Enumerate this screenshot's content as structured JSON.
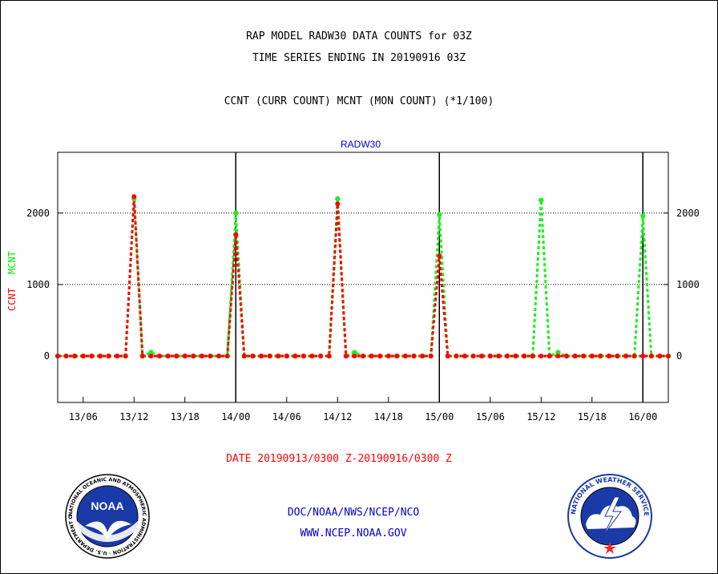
{
  "header": {
    "title": "RAP MODEL RADW30 DATA COUNTS for 03Z",
    "subtitle": "TIME SERIES ENDING IN 20190916 03Z",
    "legend_text": "CCNT (CURR COUNT) MCNT (MON COUNT) (*1/100)"
  },
  "footer": {
    "date_range": "DATE 20190913/0300 Z-20190916/0300 Z",
    "org": "DOC/NOAA/NWS/NCEP/NCO",
    "url": "WWW.NCEP.NOAA.GOV"
  },
  "logos": {
    "noaa": {
      "ring_text": "NATIONAL OCEANIC AND ATMOSPHERIC ADMINISTRATION · U.S. DEPARTMENT OF COMMERCE",
      "center_text": "NOAA"
    },
    "nws": {
      "ring_text": "NATIONAL WEATHER SERVICE"
    }
  },
  "colors": {
    "ccnt": "#ff0000",
    "mcnt": "#00ff00",
    "plot_title": "#0000cc",
    "footer": "#0000cc"
  },
  "chart_data": {
    "type": "line",
    "title": "RADW30",
    "ylabel_left": "CCNT",
    "ylabel_right": "MCNT",
    "ylim": [
      -650,
      2850
    ],
    "yticks": [
      0,
      1000,
      2000
    ],
    "x_time_range": [
      "2019-09-13T03:00Z",
      "2019-09-16T03:00Z"
    ],
    "x_ticks": [
      "13/06",
      "13/12",
      "13/18",
      "14/00",
      "14/06",
      "14/12",
      "14/18",
      "15/00",
      "15/06",
      "15/12",
      "15/18",
      "16/00"
    ],
    "day_boundaries": [
      "14/00",
      "15/00",
      "16/00"
    ],
    "grid_y": [
      1000,
      2000
    ],
    "legend": "left axis label",
    "series": [
      {
        "name": "CCNT",
        "color": "#ff0000",
        "x": [
          "2019-09-13T03:00Z",
          "2019-09-13T04:00Z",
          "2019-09-13T05:00Z",
          "2019-09-13T06:00Z",
          "2019-09-13T07:00Z",
          "2019-09-13T08:00Z",
          "2019-09-13T09:00Z",
          "2019-09-13T10:00Z",
          "2019-09-13T11:00Z",
          "2019-09-13T12:00Z",
          "2019-09-13T13:00Z",
          "2019-09-13T14:00Z",
          "2019-09-13T15:00Z",
          "2019-09-13T16:00Z",
          "2019-09-13T17:00Z",
          "2019-09-13T18:00Z",
          "2019-09-13T19:00Z",
          "2019-09-13T20:00Z",
          "2019-09-13T21:00Z",
          "2019-09-13T22:00Z",
          "2019-09-13T23:00Z",
          "2019-09-14T00:00Z",
          "2019-09-14T01:00Z",
          "2019-09-14T02:00Z",
          "2019-09-14T03:00Z",
          "2019-09-14T04:00Z",
          "2019-09-14T05:00Z",
          "2019-09-14T06:00Z",
          "2019-09-14T07:00Z",
          "2019-09-14T08:00Z",
          "2019-09-14T09:00Z",
          "2019-09-14T10:00Z",
          "2019-09-14T11:00Z",
          "2019-09-14T12:00Z",
          "2019-09-14T13:00Z",
          "2019-09-14T14:00Z",
          "2019-09-14T15:00Z",
          "2019-09-14T16:00Z",
          "2019-09-14T17:00Z",
          "2019-09-14T18:00Z",
          "2019-09-14T19:00Z",
          "2019-09-14T20:00Z",
          "2019-09-14T21:00Z",
          "2019-09-14T22:00Z",
          "2019-09-14T23:00Z",
          "2019-09-15T00:00Z",
          "2019-09-15T01:00Z",
          "2019-09-15T02:00Z",
          "2019-09-15T03:00Z",
          "2019-09-15T04:00Z",
          "2019-09-15T05:00Z",
          "2019-09-15T06:00Z",
          "2019-09-15T07:00Z",
          "2019-09-15T08:00Z",
          "2019-09-15T09:00Z",
          "2019-09-15T10:00Z",
          "2019-09-15T11:00Z",
          "2019-09-15T12:00Z",
          "2019-09-15T13:00Z",
          "2019-09-15T14:00Z",
          "2019-09-15T15:00Z",
          "2019-09-15T16:00Z",
          "2019-09-15T17:00Z",
          "2019-09-15T18:00Z",
          "2019-09-15T19:00Z",
          "2019-09-15T20:00Z",
          "2019-09-15T21:00Z",
          "2019-09-15T22:00Z",
          "2019-09-15T23:00Z",
          "2019-09-16T00:00Z",
          "2019-09-16T01:00Z",
          "2019-09-16T02:00Z",
          "2019-09-16T03:00Z"
        ],
        "values": [
          0,
          0,
          0,
          0,
          0,
          0,
          0,
          0,
          0,
          2230,
          0,
          0,
          0,
          0,
          0,
          0,
          0,
          0,
          0,
          0,
          0,
          1700,
          0,
          0,
          0,
          0,
          0,
          0,
          0,
          0,
          0,
          0,
          0,
          2130,
          0,
          0,
          0,
          0,
          0,
          0,
          0,
          0,
          0,
          0,
          0,
          1400,
          0,
          0,
          0,
          0,
          0,
          0,
          0,
          0,
          0,
          0,
          0,
          0,
          0,
          0,
          0,
          0,
          0,
          0,
          0,
          0,
          0,
          0,
          0,
          0,
          0,
          0,
          0
        ]
      },
      {
        "name": "MCNT",
        "color": "#00ff00",
        "x": [
          "2019-09-13T03:00Z",
          "2019-09-13T04:00Z",
          "2019-09-13T05:00Z",
          "2019-09-13T06:00Z",
          "2019-09-13T07:00Z",
          "2019-09-13T08:00Z",
          "2019-09-13T09:00Z",
          "2019-09-13T10:00Z",
          "2019-09-13T11:00Z",
          "2019-09-13T12:00Z",
          "2019-09-13T13:00Z",
          "2019-09-13T14:00Z",
          "2019-09-13T15:00Z",
          "2019-09-13T16:00Z",
          "2019-09-13T17:00Z",
          "2019-09-13T18:00Z",
          "2019-09-13T19:00Z",
          "2019-09-13T20:00Z",
          "2019-09-13T21:00Z",
          "2019-09-13T22:00Z",
          "2019-09-13T23:00Z",
          "2019-09-14T00:00Z",
          "2019-09-14T01:00Z",
          "2019-09-14T02:00Z",
          "2019-09-14T03:00Z",
          "2019-09-14T04:00Z",
          "2019-09-14T05:00Z",
          "2019-09-14T06:00Z",
          "2019-09-14T07:00Z",
          "2019-09-14T08:00Z",
          "2019-09-14T09:00Z",
          "2019-09-14T10:00Z",
          "2019-09-14T11:00Z",
          "2019-09-14T12:00Z",
          "2019-09-14T13:00Z",
          "2019-09-14T14:00Z",
          "2019-09-14T15:00Z",
          "2019-09-14T16:00Z",
          "2019-09-14T17:00Z",
          "2019-09-14T18:00Z",
          "2019-09-14T19:00Z",
          "2019-09-14T20:00Z",
          "2019-09-14T21:00Z",
          "2019-09-14T22:00Z",
          "2019-09-14T23:00Z",
          "2019-09-15T00:00Z",
          "2019-09-15T01:00Z",
          "2019-09-15T02:00Z",
          "2019-09-15T03:00Z",
          "2019-09-15T04:00Z",
          "2019-09-15T05:00Z",
          "2019-09-15T06:00Z",
          "2019-09-15T07:00Z",
          "2019-09-15T08:00Z",
          "2019-09-15T09:00Z",
          "2019-09-15T10:00Z",
          "2019-09-15T11:00Z",
          "2019-09-15T12:00Z",
          "2019-09-15T13:00Z",
          "2019-09-15T14:00Z",
          "2019-09-15T15:00Z",
          "2019-09-15T16:00Z",
          "2019-09-15T17:00Z",
          "2019-09-15T18:00Z",
          "2019-09-15T19:00Z",
          "2019-09-15T20:00Z",
          "2019-09-15T21:00Z",
          "2019-09-15T22:00Z",
          "2019-09-15T23:00Z",
          "2019-09-16T00:00Z",
          "2019-09-16T01:00Z",
          "2019-09-16T02:00Z",
          "2019-09-16T03:00Z"
        ],
        "values": [
          0,
          0,
          0,
          0,
          0,
          0,
          0,
          0,
          0,
          2200,
          0,
          50,
          0,
          0,
          0,
          0,
          0,
          0,
          0,
          0,
          0,
          2000,
          0,
          0,
          0,
          0,
          0,
          0,
          0,
          0,
          0,
          0,
          0,
          2200,
          0,
          50,
          0,
          0,
          0,
          0,
          0,
          0,
          0,
          0,
          0,
          1980,
          0,
          0,
          0,
          0,
          0,
          0,
          0,
          0,
          0,
          0,
          0,
          2180,
          0,
          50,
          0,
          0,
          0,
          0,
          0,
          0,
          0,
          0,
          0,
          1960,
          0,
          0,
          0
        ]
      }
    ]
  }
}
